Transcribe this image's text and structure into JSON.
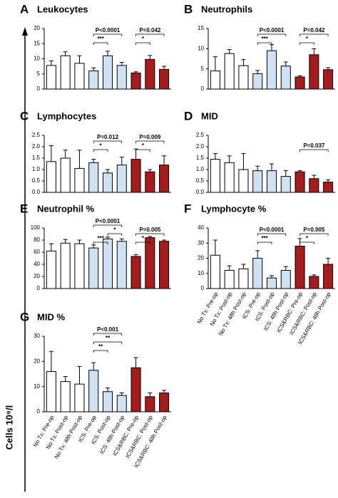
{
  "y_label": "Cells 10⁹/l",
  "bar_colors": [
    "#ffffff",
    "#ffffff",
    "#ffffff",
    "#cfe2f3",
    "#cfe2f3",
    "#cfe2f3",
    "#a61c1c",
    "#a61c1c",
    "#a61c1c"
  ],
  "chart_data": [
    {
      "type": "bar",
      "panel": "A",
      "title": "Leukocytes",
      "values": [
        7.8,
        11,
        8.5,
        6,
        11,
        7.8,
        5.3,
        9.8,
        6.5
      ],
      "errors": [
        1.5,
        1.3,
        2.5,
        1,
        1.5,
        1,
        0.4,
        1.3,
        1
      ],
      "ylim": [
        0,
        20
      ],
      "yticks": [
        0,
        5,
        10,
        15,
        20
      ],
      "brackets": [
        [
          {
            "text": "***",
            "between": [
              3,
              4
            ]
          },
          {
            "text": "P<0.0001",
            "between": [
              3,
              5
            ]
          }
        ],
        [
          {
            "text": "*",
            "between": [
              6,
              7
            ]
          },
          {
            "text": "P=0.042",
            "between": [
              6,
              8
            ]
          }
        ]
      ]
    },
    {
      "type": "bar",
      "panel": "B",
      "title": "Neutrophils",
      "values": [
        4.5,
        8.8,
        5.8,
        3.8,
        9.5,
        5.7,
        3,
        8.5,
        4.8
      ],
      "errors": [
        3.5,
        1,
        1.5,
        0.8,
        1.5,
        1,
        0.3,
        1.5,
        0.5
      ],
      "ylim": [
        0,
        15
      ],
      "yticks": [
        0,
        5,
        10,
        15
      ],
      "brackets": [
        [
          {
            "text": "***",
            "between": [
              3,
              4
            ]
          },
          {
            "text": "P<0.0001",
            "between": [
              3,
              5
            ]
          }
        ],
        [
          {
            "text": "*",
            "between": [
              6,
              7
            ]
          },
          {
            "text": "P=0.042",
            "between": [
              6,
              8
            ]
          }
        ]
      ]
    },
    {
      "type": "bar",
      "panel": "C",
      "title": "Lymphocytes",
      "values": [
        1.35,
        1.5,
        1.05,
        1.3,
        0.85,
        1.2,
        1.45,
        0.9,
        1.2
      ],
      "errors": [
        0.7,
        0.35,
        0.8,
        0.15,
        0.15,
        0.35,
        0.45,
        0.1,
        0.4
      ],
      "ylim": [
        0,
        2.5
      ],
      "yticks": [
        {
          "value": 0,
          "label": "0.0"
        },
        0.5,
        {
          "value": 1,
          "label": "1.0"
        },
        1.5,
        {
          "value": 2,
          "label": "2.0"
        },
        2.5
      ],
      "brackets": [
        [
          {
            "text": "*",
            "between": [
              3,
              4
            ]
          },
          {
            "text": "P=0.012",
            "between": [
              3,
              5
            ]
          }
        ],
        [
          {
            "text": "*",
            "between": [
              6,
              7
            ]
          },
          {
            "text": "P=0.009",
            "between": [
              6,
              8
            ]
          }
        ]
      ]
    },
    {
      "type": "bar",
      "panel": "D",
      "title": "MID",
      "values": [
        1.45,
        1.3,
        1.0,
        0.95,
        0.95,
        0.7,
        0.9,
        0.6,
        0.45
      ],
      "errors": [
        0.25,
        0.3,
        0.7,
        0.2,
        0.3,
        0.25,
        0.05,
        0.15,
        0.1
      ],
      "ylim": [
        0,
        2.5
      ],
      "yticks": [
        {
          "value": 0,
          "label": "0.0"
        },
        0.5,
        {
          "value": 1,
          "label": "1.0"
        },
        1.5,
        {
          "value": 2,
          "label": "2.0"
        },
        2.5
      ],
      "brackets": [
        [
          {
            "text": "P=0.037",
            "between": [
              6,
              8
            ]
          }
        ]
      ]
    },
    {
      "type": "bar",
      "panel": "E",
      "title": "Neutrophil %",
      "values": [
        62,
        75,
        74,
        67,
        82,
        78,
        53,
        84,
        78
      ],
      "errors": [
        12,
        6,
        6,
        5,
        3,
        4,
        3,
        2,
        2
      ],
      "ylim": [
        0,
        100
      ],
      "yticks": [
        0,
        20,
        40,
        60,
        80,
        100
      ],
      "brackets": [
        [
          {
            "text": "***",
            "between": [
              3,
              4
            ]
          },
          {
            "text": "*",
            "between": [
              4,
              5
            ]
          },
          {
            "text": "P<0.0001",
            "between": [
              3,
              5
            ]
          }
        ],
        [
          {
            "text": "*",
            "between": [
              6,
              7
            ]
          },
          {
            "text": "P=0.005",
            "between": [
              6,
              8
            ]
          }
        ]
      ]
    },
    {
      "type": "bar",
      "panel": "F",
      "title": "Lymphocyte %",
      "categories": [
        "No Tx: Pre-op",
        "No Tx: Post-op",
        "No Tx: 48h Post-op",
        "ICS: Pre-op",
        "ICS: Post-op",
        "ICS: 48h Post-op",
        "ICS&RBC: Pre-op",
        "ICS&RBC: Post-op",
        "ICS&RBC: 48h Post-op"
      ],
      "values": [
        22,
        12,
        13,
        20,
        7,
        12,
        28,
        8,
        16
      ],
      "errors": [
        10,
        3,
        3,
        5,
        1.5,
        2.5,
        5,
        1,
        4
      ],
      "ylim": [
        0,
        40
      ],
      "yticks": [
        0,
        10,
        20,
        30,
        40
      ],
      "brackets": [
        [
          {
            "text": "***",
            "between": [
              3,
              4
            ]
          },
          {
            "text": "P<0.0001",
            "between": [
              3,
              5
            ]
          }
        ],
        [
          {
            "text": "*",
            "between": [
              6,
              7
            ]
          },
          {
            "text": "P=0.005",
            "between": [
              6,
              8
            ]
          }
        ]
      ]
    },
    {
      "type": "bar",
      "panel": "G",
      "title": "MID %",
      "categories": [
        "No Tx: Pre-op",
        "No Tx: Post-op",
        "No Tx: 48h Post-op",
        "ICS: Pre-op",
        "ICS: Post-op",
        "ICS: 48h Post-op",
        "ICS&RBC: Pre-op",
        "ICS&RBC: Post-op",
        "ICS&RBC: 48h Post-op"
      ],
      "values": [
        16,
        12,
        11,
        16.5,
        8,
        6.5,
        17.5,
        6,
        7.5
      ],
      "errors": [
        8,
        2,
        7,
        3,
        1.5,
        1,
        4,
        1.5,
        1
      ],
      "ylim": [
        0,
        30
      ],
      "yticks": [
        0,
        10,
        20,
        30
      ],
      "brackets": [
        [
          {
            "text": "**",
            "between": [
              3,
              4
            ]
          },
          {
            "text": "**",
            "between": [
              3,
              5
            ]
          },
          {
            "text": "P<0.001",
            "between": [
              3,
              5
            ]
          }
        ]
      ]
    }
  ]
}
